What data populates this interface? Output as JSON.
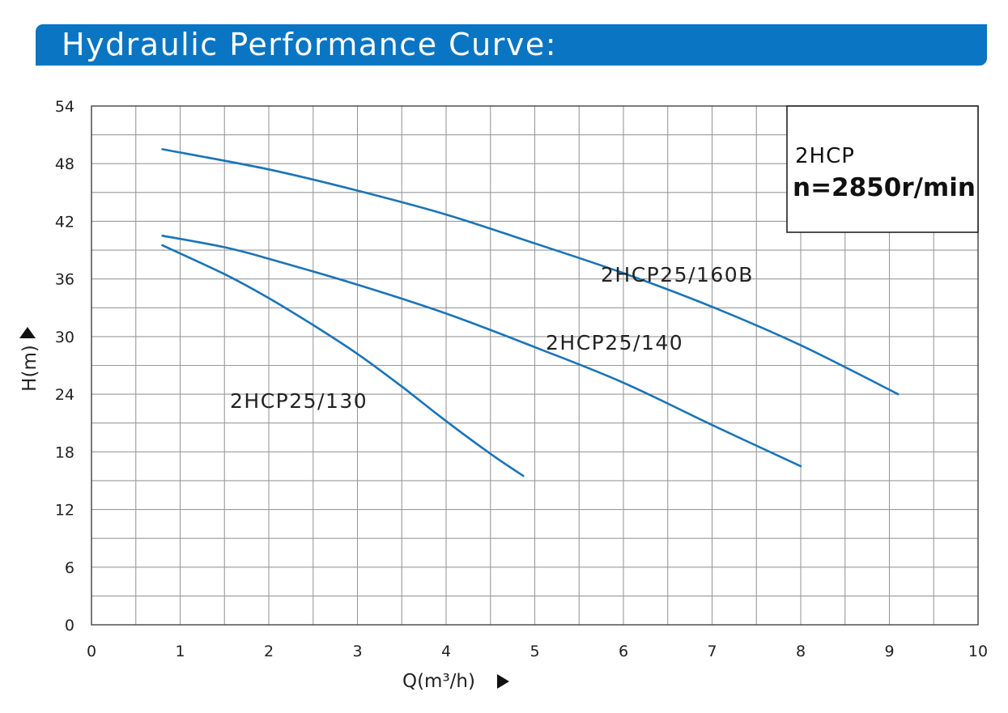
{
  "header": {
    "title": "Hydraulic Performance Curve:"
  },
  "info_box": {
    "line1": "2HCP",
    "line2": "n=2850r/min"
  },
  "colors": {
    "banner": "#0a75c2",
    "curve": "#1a74b8",
    "grid": "#9a9a9a"
  },
  "chart_data": {
    "type": "line",
    "xlabel": "Q(m³/h)",
    "ylabel": "H(m)",
    "xlim": [
      0,
      10
    ],
    "ylim": [
      0,
      54
    ],
    "x_ticks": [
      "0",
      "1",
      "2",
      "3",
      "4",
      "5",
      "6",
      "7",
      "8",
      "9",
      "10"
    ],
    "y_ticks": [
      "0",
      "6",
      "12",
      "18",
      "24",
      "30",
      "36",
      "42",
      "48",
      "54"
    ],
    "grid": true,
    "series": [
      {
        "name": "2HCP25/130",
        "x": [
          0.8,
          1.5,
          2.0,
          2.5,
          3.0,
          3.5,
          4.0,
          4.5,
          4.87
        ],
        "y": [
          39.5,
          36.5,
          34.0,
          31.2,
          28.2,
          24.8,
          21.2,
          17.8,
          15.5
        ]
      },
      {
        "name": "2HCP25/140",
        "x": [
          0.8,
          1.5,
          2.0,
          3.0,
          4.0,
          5.0,
          6.0,
          7.0,
          8.0
        ],
        "y": [
          40.5,
          39.3,
          38.1,
          35.4,
          32.4,
          28.9,
          25.2,
          20.8,
          16.5
        ]
      },
      {
        "name": "2HCP25/160B",
        "x": [
          0.8,
          2.0,
          3.0,
          4.0,
          5.0,
          6.0,
          7.0,
          8.0,
          9.1
        ],
        "y": [
          49.5,
          47.4,
          45.2,
          42.7,
          39.7,
          36.6,
          33.1,
          29.1,
          24.0
        ]
      }
    ]
  }
}
